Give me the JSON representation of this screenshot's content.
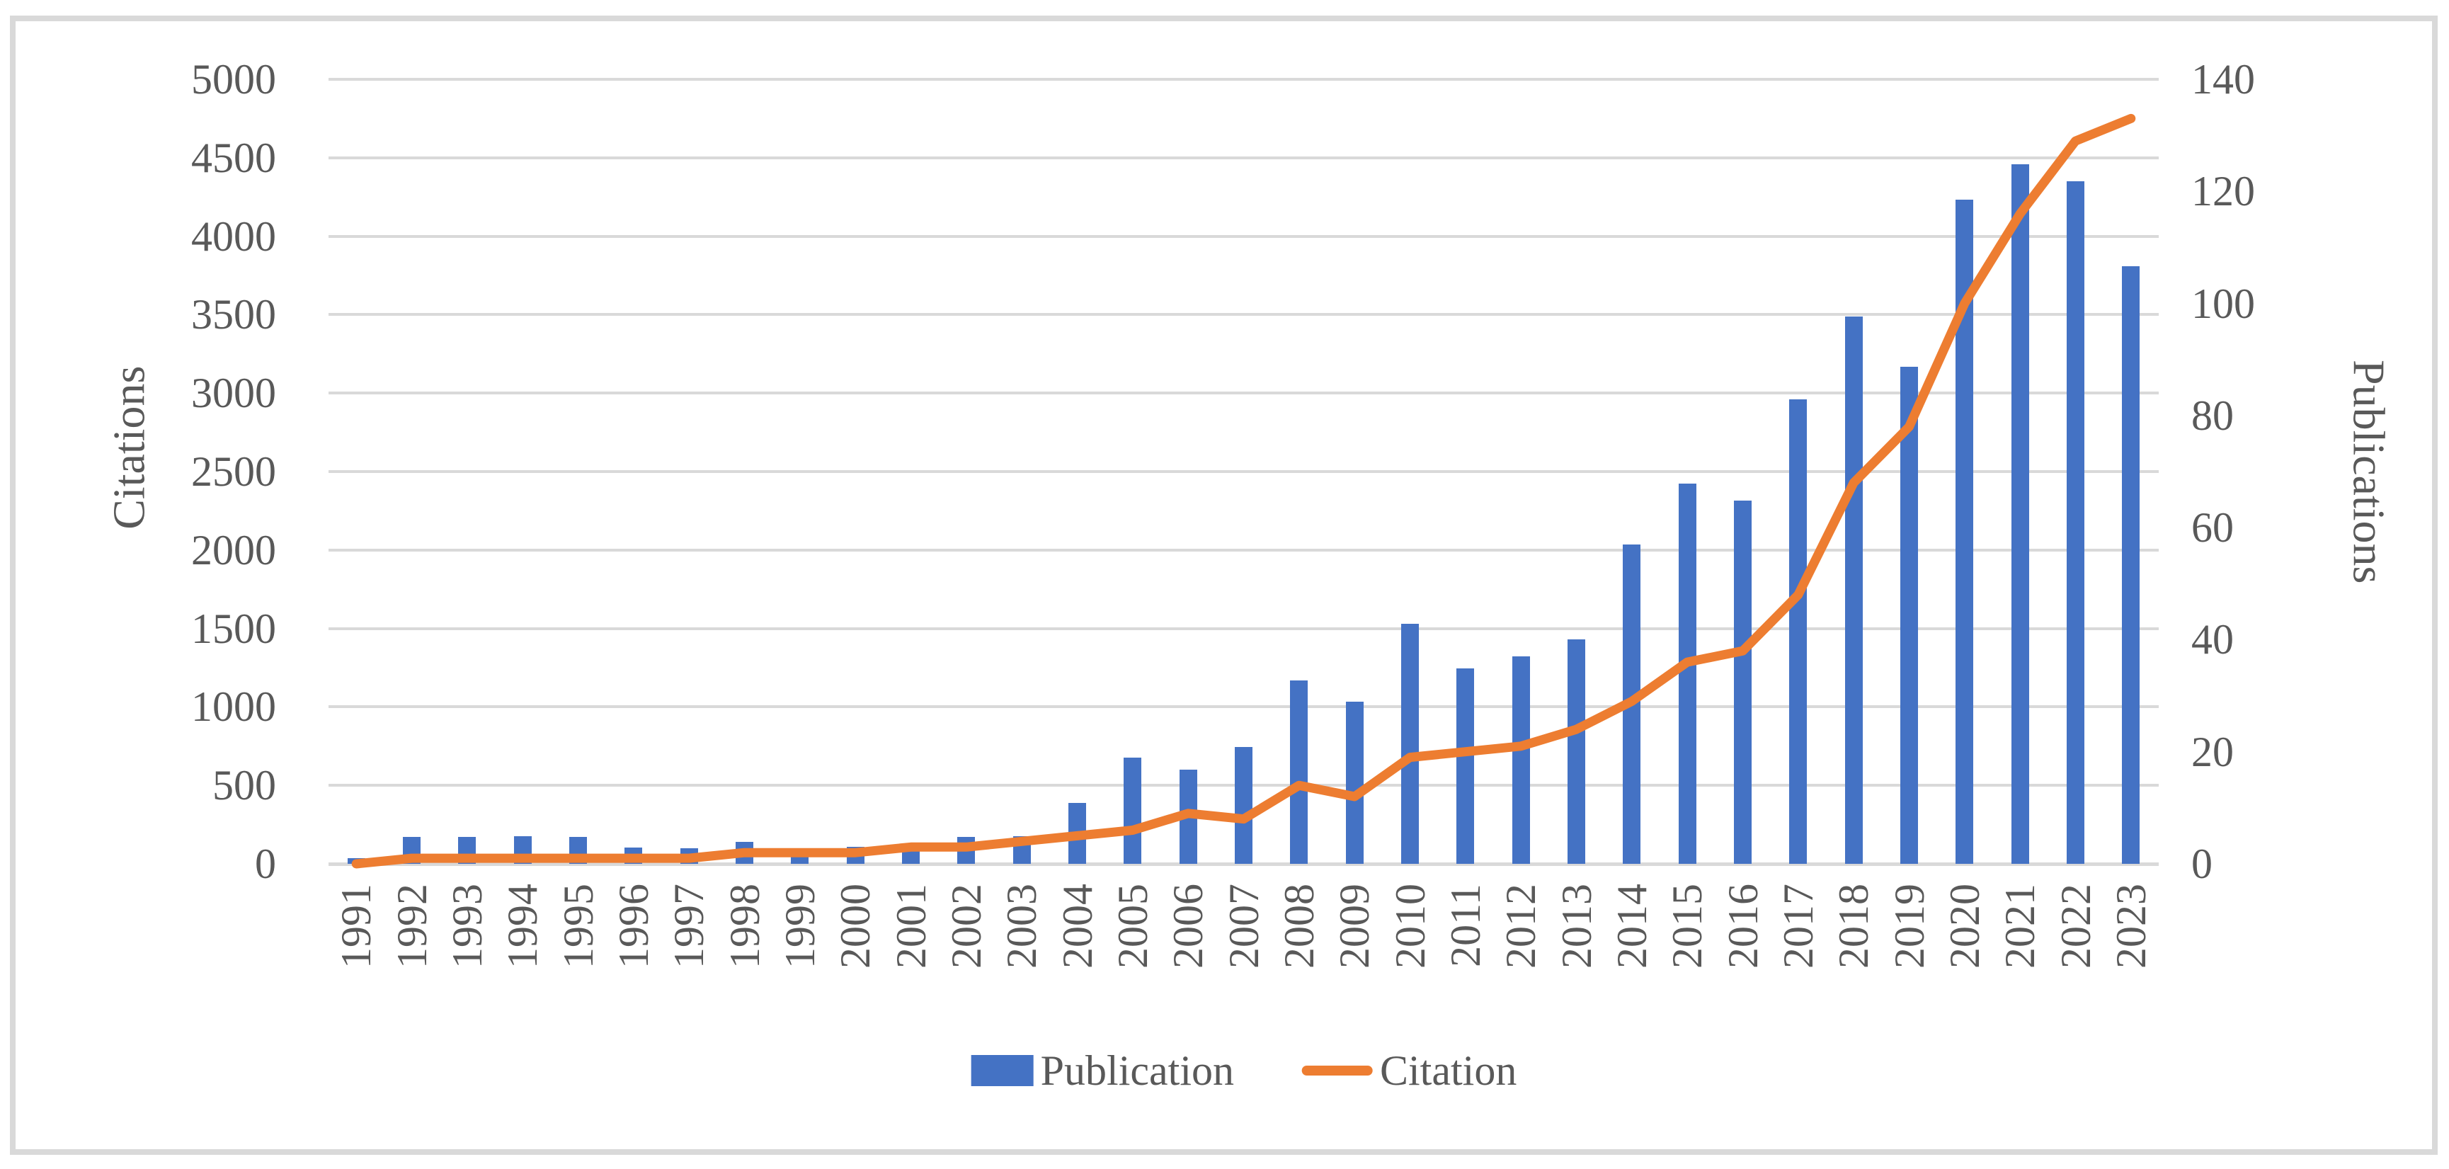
{
  "figure": {
    "background": "#FFFFFF",
    "border_color": "#D9D9D9",
    "gridline_color": "#D9D9D9",
    "text_color": "#595959"
  },
  "chart_data": {
    "type": "bar",
    "subtype": "dual-axis bar+line combo",
    "title": "",
    "categories": [
      "1991",
      "1992",
      "1993",
      "1994",
      "1995",
      "1996",
      "1997",
      "1998",
      "1999",
      "2000",
      "2001",
      "2002",
      "2003",
      "2004",
      "2005",
      "2006",
      "2007",
      "2008",
      "2009",
      "2010",
      "2011",
      "2012",
      "2013",
      "2014",
      "2015",
      "2016",
      "2017",
      "2018",
      "2019",
      "2020",
      "2021",
      "2022",
      "2023"
    ],
    "series": [
      {
        "name": "Publication",
        "type": "bar",
        "axis": "left",
        "color": "#4472C4",
        "values": [
          35,
          170,
          170,
          175,
          170,
          105,
          100,
          140,
          60,
          110,
          120,
          170,
          175,
          390,
          675,
          600,
          745,
          1170,
          1035,
          1530,
          1245,
          1320,
          1430,
          2035,
          2425,
          2315,
          2960,
          3490,
          3170,
          4235,
          4460,
          4350,
          3810
        ]
      },
      {
        "name": "Citation",
        "type": "line",
        "axis": "right",
        "color": "#ED7D31",
        "values": [
          0,
          1,
          1,
          1,
          1,
          1,
          1,
          2,
          2,
          2,
          3,
          3,
          4,
          5,
          6,
          9,
          8,
          14,
          12,
          19,
          20,
          21,
          24,
          29,
          36,
          38,
          48,
          68,
          78,
          100,
          116,
          129,
          133
        ]
      }
    ],
    "left_axis": {
      "title": "Citations",
      "min": 0,
      "max": 5000,
      "step": 500,
      "tick_labels": [
        "0",
        "500",
        "1000",
        "1500",
        "2000",
        "2500",
        "3000",
        "3500",
        "4000",
        "4500",
        "5000"
      ]
    },
    "right_axis": {
      "title": "Publications",
      "min": 0,
      "max": 140,
      "step": 20,
      "tick_labels": [
        "0",
        "20",
        "40",
        "60",
        "80",
        "100",
        "120",
        "140"
      ]
    },
    "grid": "horizontal gridlines on, drawn at every 500 of left axis",
    "legend_position": "bottom-center"
  },
  "legend": {
    "items": [
      {
        "label": "Publication",
        "swatch": "bar",
        "color": "#4472C4"
      },
      {
        "label": "Citation",
        "swatch": "line",
        "color": "#ED7D31"
      }
    ]
  }
}
